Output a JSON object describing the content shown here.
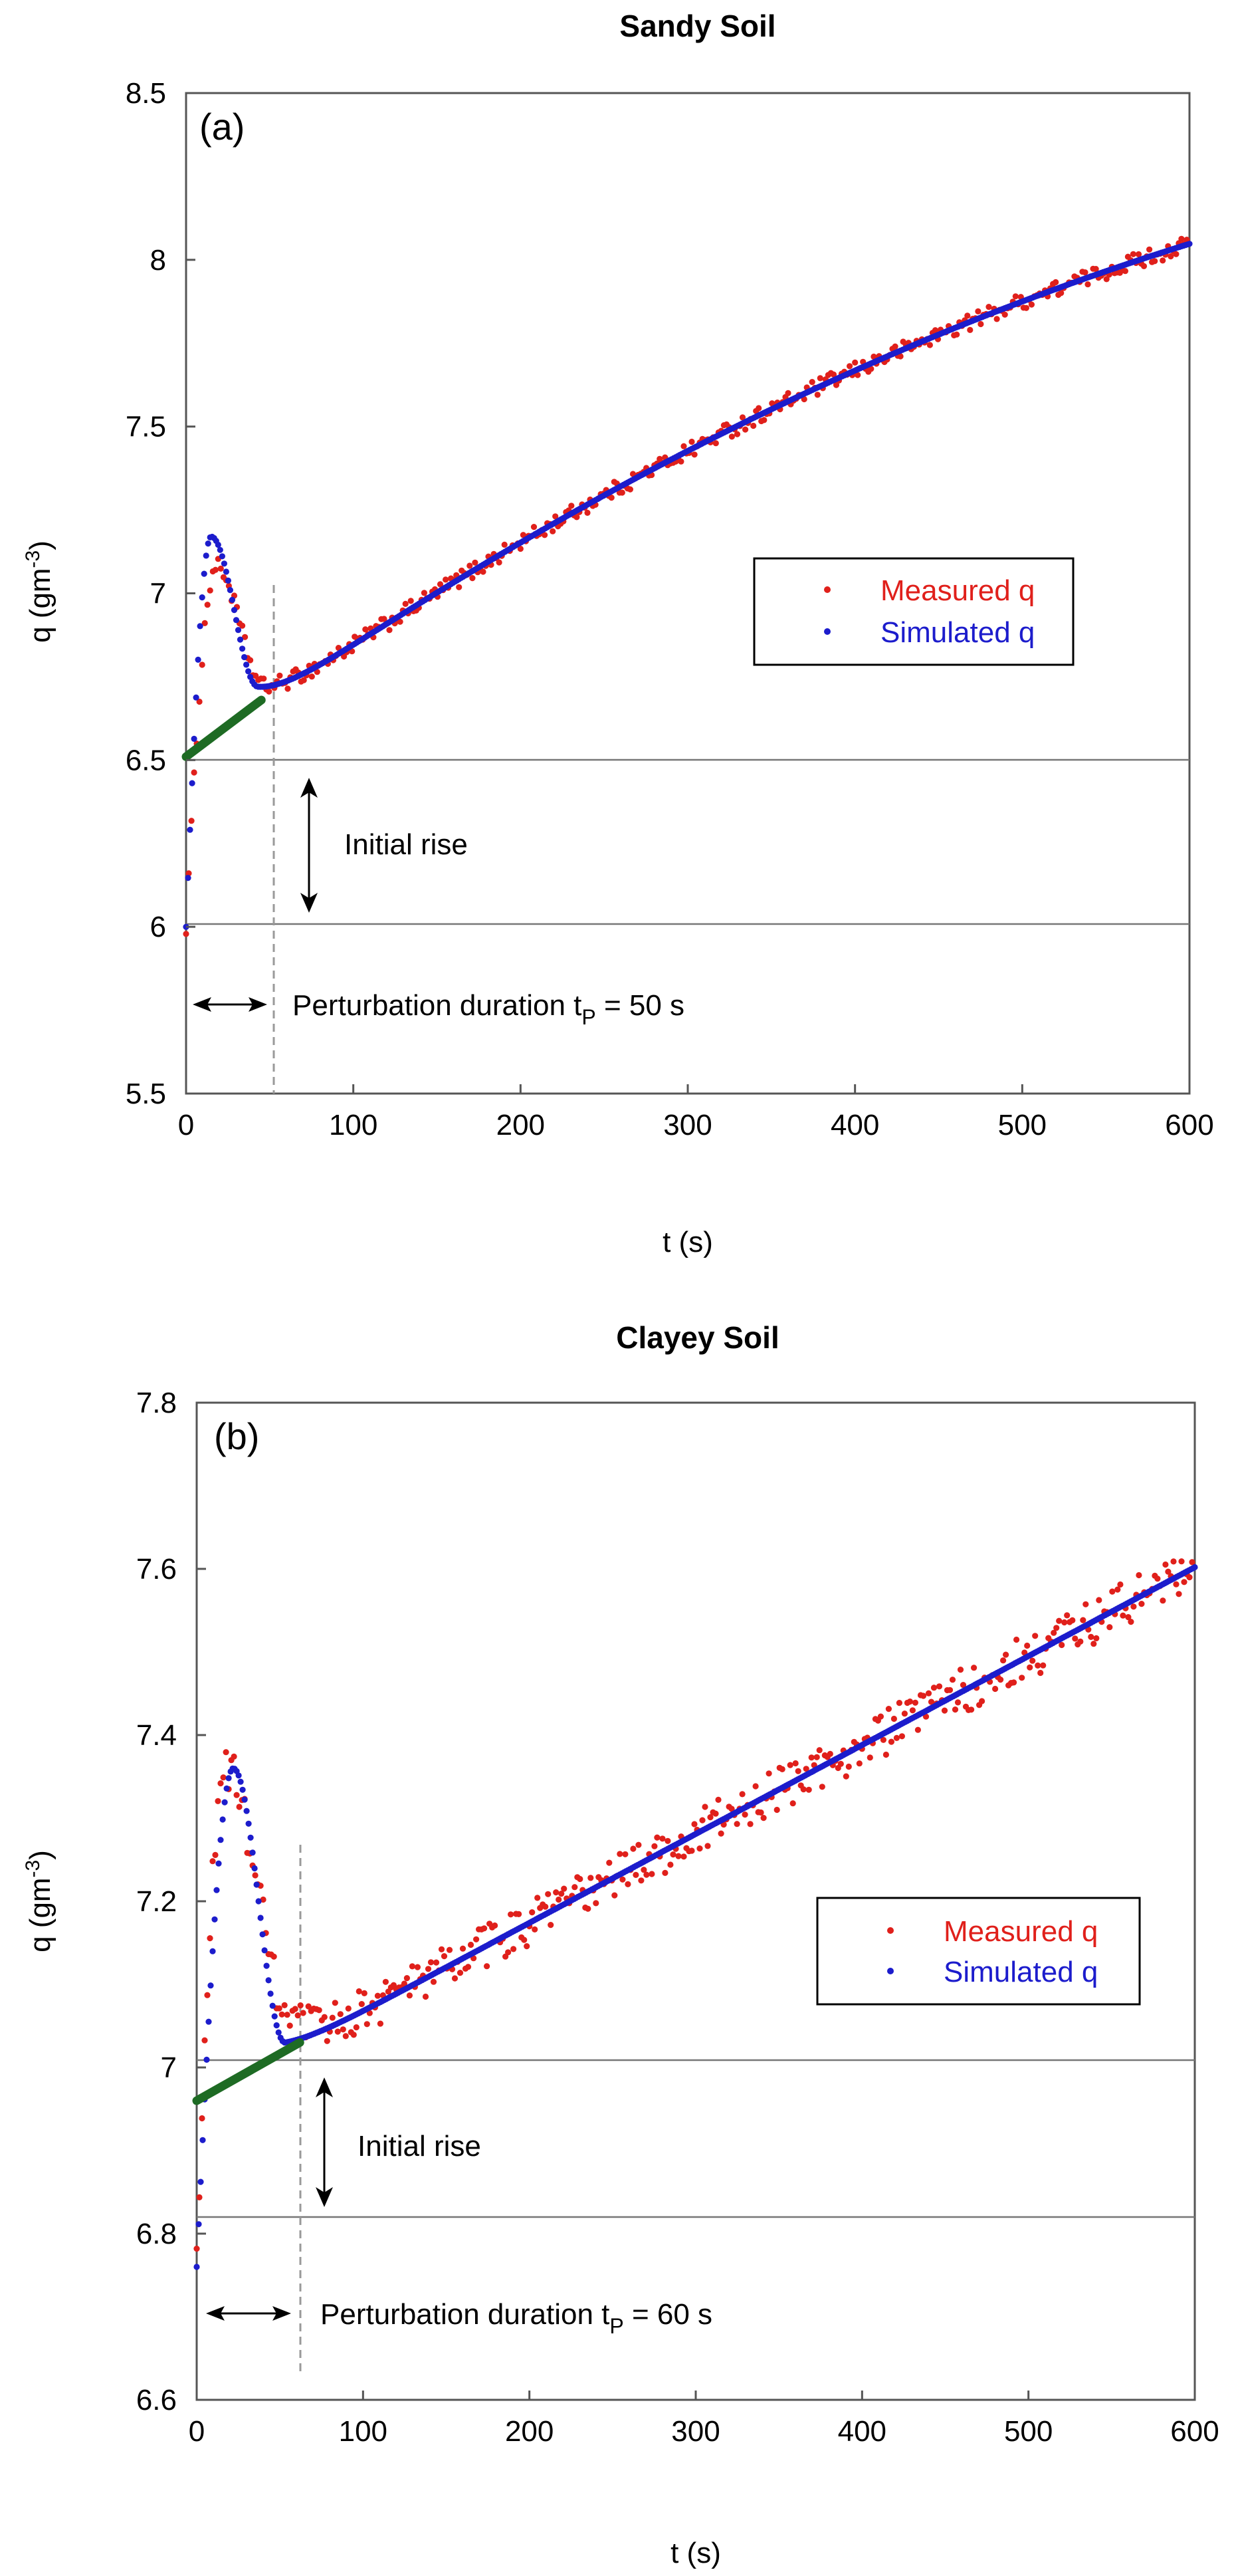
{
  "chart_data": [
    {
      "type": "scatter",
      "panel_label": "(a)",
      "title": "Sandy Soil",
      "xlabel": "t (s)",
      "ylabel": {
        "base": "q (gm",
        "sup": "-3",
        "end": ")"
      },
      "xlim": [
        0,
        600
      ],
      "ylim": [
        5.5,
        8.5
      ],
      "xticks": [
        0,
        100,
        200,
        300,
        400,
        500,
        600
      ],
      "yticks": [
        5.5,
        6,
        6.5,
        7,
        7.5,
        8,
        8.5
      ],
      "xtick_labels": [
        "0",
        "100",
        "200",
        "300",
        "400",
        "500",
        "600"
      ],
      "ytick_labels": [
        "5.5",
        "6",
        "6.5",
        "7",
        "7.5",
        "8",
        "8.5"
      ],
      "grid": false,
      "legend_position": "right",
      "series": [
        {
          "name": "Measured q",
          "color": "#e0201b",
          "marker": "dot",
          "model": {
            "q0": 6.0,
            "qpeak": 7.08,
            "tpeak": 18,
            "qmin": 6.72,
            "tmin": 47,
            "b": 6.5,
            "slope": 0.0036,
            "curv": 1.7e-06,
            "noise": 0.025,
            "step": 1.6
          }
        },
        {
          "name": "Simulated q",
          "color": "#1c1ccc",
          "marker": "dot",
          "model": {
            "q0": 6.0,
            "qpeak": 7.17,
            "tpeak": 15,
            "qmin": 6.72,
            "tmin": 43,
            "b": 6.5,
            "slope": 0.0036,
            "curv": 1.7e-06,
            "noise": 0,
            "step": 1.2
          }
        }
      ],
      "fit_line": {
        "color": "#1e6b24",
        "t0": 0,
        "t1": 45,
        "q0": 6.51,
        "q1": 6.68
      },
      "reference_lines": [
        6.5,
        6.0
      ],
      "perturbation_time": 53,
      "annotations": {
        "initial_rise": "Initial rise",
        "perturbation": "Perturbation duration t",
        "perturbation_sub": "P",
        "perturbation_value": " = 50 s"
      }
    },
    {
      "type": "scatter",
      "panel_label": "(b)",
      "title": "Clayey Soil",
      "xlabel": "t (s)",
      "ylabel": {
        "base": "q (gm",
        "sup": "-3",
        "end": ")"
      },
      "xlim": [
        0,
        600
      ],
      "ylim": [
        6.6,
        7.8
      ],
      "xticks": [
        0,
        100,
        200,
        300,
        400,
        500,
        600
      ],
      "yticks": [
        6.6,
        6.8,
        7,
        7.2,
        7.4,
        7.6,
        7.8
      ],
      "xtick_labels": [
        "0",
        "100",
        "200",
        "300",
        "400",
        "500",
        "600"
      ],
      "ytick_labels": [
        "6.6",
        "6.8",
        "7",
        "7.2",
        "7.4",
        "7.6",
        "7.8"
      ],
      "grid": false,
      "legend_position": "right",
      "series": [
        {
          "name": "Measured q",
          "color": "#e0201b",
          "marker": "dot",
          "model": {
            "q0": 6.76,
            "qpeak": 7.36,
            "tpeak": 17,
            "qmin": 7.05,
            "tmin": 58,
            "b": 6.96,
            "slope": 0.00107,
            "curv": 0,
            "noise": 0.028,
            "step": 1.6
          }
        },
        {
          "name": "Simulated q",
          "color": "#1c1ccc",
          "marker": "dot",
          "model": {
            "q0": 6.76,
            "qpeak": 7.36,
            "tpeak": 22,
            "qmin": 7.03,
            "tmin": 53,
            "b": 6.96,
            "slope": 0.00107,
            "curv": 0,
            "noise": 0,
            "step": 1.2
          }
        }
      ],
      "fit_line": {
        "color": "#1e6b24",
        "t0": 0,
        "t1": 62,
        "q0": 6.96,
        "q1": 7.03
      },
      "reference_lines": [
        6.955,
        6.765
      ],
      "perturbation_time": 62,
      "annotations": {
        "initial_rise": "Initial rise",
        "perturbation": "Perturbation duration t",
        "perturbation_sub": "P",
        "perturbation_value": " = 60 s"
      }
    }
  ]
}
